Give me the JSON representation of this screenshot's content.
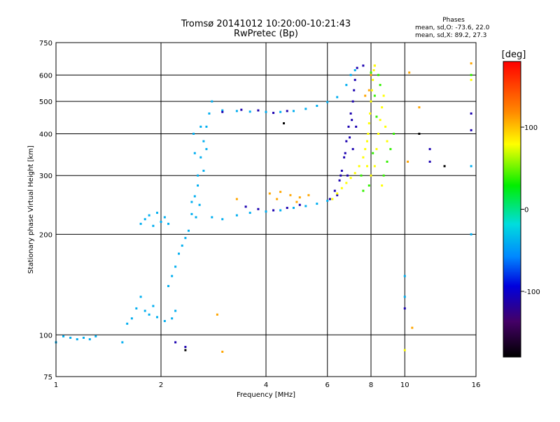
{
  "chart_data": {
    "type": "scatter",
    "title": "Tromsø 20141012 10:20:00-10:21:43",
    "subtitle": "RwPretec (Bp)",
    "xlabel": "Frequency [MHz]",
    "ylabel": "Stationary phase Virtual Height [km]",
    "x_scale": "log",
    "y_scale": "log",
    "xlim": [
      1,
      16
    ],
    "ylim": [
      75,
      750
    ],
    "x_ticks": [
      1,
      2,
      4,
      6,
      8,
      10,
      16
    ],
    "x_tick_labels": [
      "1",
      "2",
      "4",
      "6",
      "8",
      "10",
      "16"
    ],
    "y_ticks": [
      75,
      100,
      200,
      300,
      400,
      500,
      600,
      750
    ],
    "y_tick_labels": [
      "75",
      "100",
      "200",
      "300",
      "400",
      "500",
      "600",
      "750"
    ],
    "grid": true,
    "stats": {
      "header": "Phases",
      "line_o": "mean, sd,O: -73.6, 22.0",
      "line_x": "mean, sd,X:  89.2, 27.3"
    },
    "colorbar": {
      "label": "[deg]",
      "range": [
        -180,
        180
      ],
      "ticks": [
        100,
        0,
        -100
      ],
      "tick_labels": [
        "100",
        "0",
        "-100"
      ]
    },
    "series": [
      {
        "phase": -40,
        "points": [
          [
            1.0,
            95
          ],
          [
            1.05,
            99
          ],
          [
            1.1,
            98
          ],
          [
            1.15,
            97
          ],
          [
            1.2,
            98
          ],
          [
            1.3,
            99
          ],
          [
            1.25,
            97
          ],
          [
            1.55,
            95
          ],
          [
            1.6,
            108
          ],
          [
            1.7,
            120
          ],
          [
            1.65,
            112
          ],
          [
            1.8,
            118
          ],
          [
            1.75,
            130
          ],
          [
            1.85,
            115
          ],
          [
            1.9,
            122
          ],
          [
            1.95,
            113
          ],
          [
            2.05,
            110
          ],
          [
            2.15,
            112
          ],
          [
            2.2,
            118
          ],
          [
            1.75,
            215
          ],
          [
            1.8,
            222
          ],
          [
            1.85,
            228
          ],
          [
            1.9,
            212
          ],
          [
            1.95,
            232
          ],
          [
            2.0,
            218
          ],
          [
            2.05,
            225
          ],
          [
            2.1,
            215
          ],
          [
            2.1,
            140
          ],
          [
            2.15,
            150
          ],
          [
            2.2,
            160
          ],
          [
            2.25,
            175
          ],
          [
            2.3,
            185
          ],
          [
            2.35,
            195
          ],
          [
            2.4,
            205
          ],
          [
            2.45,
            230
          ],
          [
            2.5,
            260
          ],
          [
            2.55,
            300
          ],
          [
            2.6,
            340
          ],
          [
            2.65,
            380
          ],
          [
            2.7,
            420
          ],
          [
            2.75,
            460
          ],
          [
            2.8,
            500
          ],
          [
            2.45,
            250
          ],
          [
            2.5,
            350
          ],
          [
            2.55,
            280
          ],
          [
            2.6,
            420
          ],
          [
            2.65,
            310
          ],
          [
            2.7,
            360
          ],
          [
            2.48,
            400
          ],
          [
            2.52,
            225
          ],
          [
            2.58,
            245
          ],
          [
            2.8,
            225
          ],
          [
            3.0,
            222
          ],
          [
            3.3,
            228
          ],
          [
            3.6,
            232
          ],
          [
            4.0,
            234
          ],
          [
            4.4,
            236
          ],
          [
            4.8,
            240
          ],
          [
            5.2,
            243
          ],
          [
            5.6,
            247
          ],
          [
            6.0,
            252
          ],
          [
            3.0,
            470
          ],
          [
            3.3,
            468
          ],
          [
            3.6,
            466
          ],
          [
            4.0,
            465
          ],
          [
            4.4,
            465
          ],
          [
            4.8,
            468
          ],
          [
            5.2,
            475
          ],
          [
            5.6,
            485
          ],
          [
            6.0,
            498
          ],
          [
            6.4,
            515
          ],
          [
            6.8,
            560
          ],
          [
            7.0,
            600
          ],
          [
            7.2,
            620
          ],
          [
            10.0,
            130
          ],
          [
            10.0,
            150
          ],
          [
            15.5,
            200
          ],
          [
            15.5,
            320
          ]
        ]
      },
      {
        "phase": -110,
        "points": [
          [
            3.0,
            465
          ],
          [
            3.4,
            472
          ],
          [
            3.8,
            470
          ],
          [
            4.2,
            462
          ],
          [
            4.6,
            468
          ],
          [
            3.5,
            242
          ],
          [
            3.8,
            238
          ],
          [
            4.2,
            236
          ],
          [
            4.6,
            240
          ],
          [
            5.0,
            245
          ],
          [
            6.1,
            255
          ],
          [
            6.3,
            270
          ],
          [
            6.5,
            290
          ],
          [
            6.6,
            310
          ],
          [
            6.7,
            340
          ],
          [
            6.8,
            380
          ],
          [
            6.9,
            420
          ],
          [
            7.0,
            460
          ],
          [
            7.1,
            500
          ],
          [
            7.15,
            540
          ],
          [
            7.2,
            580
          ],
          [
            7.3,
            630
          ],
          [
            7.6,
            640
          ],
          [
            6.4,
            262
          ],
          [
            6.55,
            300
          ],
          [
            6.75,
            350
          ],
          [
            6.95,
            390
          ],
          [
            7.05,
            440
          ],
          [
            6.85,
            300
          ],
          [
            7.1,
            360
          ],
          [
            7.25,
            420
          ],
          [
            2.2,
            95
          ],
          [
            2.35,
            92
          ],
          [
            10.0,
            120
          ],
          [
            11.8,
            330
          ],
          [
            11.8,
            360
          ],
          [
            15.5,
            410
          ],
          [
            15.5,
            460
          ]
        ]
      },
      {
        "phase": 110,
        "points": [
          [
            4.1,
            265
          ],
          [
            4.4,
            268
          ],
          [
            4.7,
            262
          ],
          [
            5.0,
            258
          ],
          [
            5.3,
            262
          ],
          [
            4.3,
            255
          ],
          [
            4.9,
            250
          ],
          [
            3.3,
            255
          ],
          [
            2.9,
            115
          ],
          [
            3.0,
            89
          ],
          [
            7.9,
            540
          ],
          [
            8.0,
            600
          ],
          [
            7.7,
            520
          ],
          [
            8.2,
            640
          ],
          [
            10.3,
            610
          ],
          [
            10.2,
            330
          ],
          [
            10.5,
            105
          ],
          [
            11.0,
            480
          ],
          [
            15.5,
            650
          ]
        ]
      },
      {
        "phase": 80,
        "points": [
          [
            6.2,
            255
          ],
          [
            6.4,
            265
          ],
          [
            6.6,
            275
          ],
          [
            6.8,
            285
          ],
          [
            7.0,
            295
          ],
          [
            7.2,
            305
          ],
          [
            7.4,
            320
          ],
          [
            7.6,
            340
          ],
          [
            7.7,
            360
          ],
          [
            7.8,
            380
          ],
          [
            7.85,
            400
          ],
          [
            7.9,
            430
          ],
          [
            7.95,
            460
          ],
          [
            8.0,
            500
          ],
          [
            8.05,
            540
          ],
          [
            8.1,
            580
          ],
          [
            8.15,
            620
          ],
          [
            8.2,
            640
          ],
          [
            7.8,
            320
          ],
          [
            8.0,
            300
          ],
          [
            8.2,
            320
          ],
          [
            8.3,
            360
          ],
          [
            8.4,
            400
          ],
          [
            8.5,
            440
          ],
          [
            8.6,
            480
          ],
          [
            8.7,
            520
          ],
          [
            8.6,
            280
          ],
          [
            8.8,
            420
          ],
          [
            8.9,
            380
          ],
          [
            10.0,
            90
          ],
          [
            15.5,
            580
          ]
        ]
      },
      {
        "phase": 40,
        "points": [
          [
            7.5,
            300
          ],
          [
            7.9,
            280
          ],
          [
            8.1,
            350
          ],
          [
            8.3,
            450
          ],
          [
            8.5,
            560
          ],
          [
            8.7,
            300
          ],
          [
            8.9,
            330
          ],
          [
            9.1,
            360
          ],
          [
            9.3,
            400
          ],
          [
            8.2,
            520
          ],
          [
            8.0,
            610
          ],
          [
            7.6,
            270
          ],
          [
            8.4,
            600
          ],
          [
            15.5,
            600
          ]
        ]
      },
      {
        "phase": -180,
        "points": [
          [
            2.35,
            90
          ],
          [
            4.5,
            430
          ],
          [
            11.0,
            400
          ],
          [
            13.0,
            320
          ]
        ]
      }
    ]
  }
}
